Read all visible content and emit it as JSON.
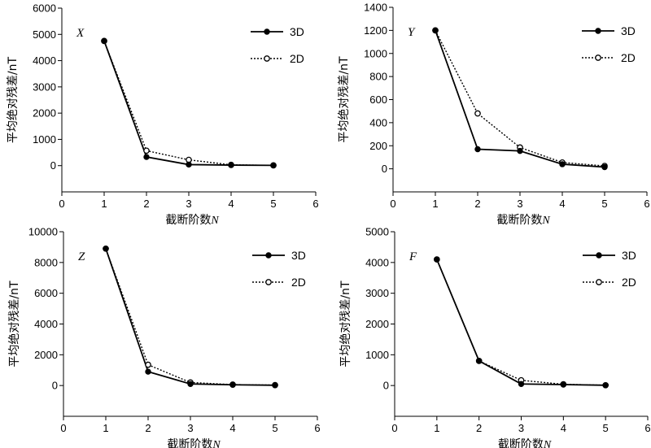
{
  "chart_data": [
    {
      "type": "line",
      "panel_label": "X",
      "xlabel": "截断阶数",
      "xlabel_var": "N",
      "ylabel": "平均绝对残差/nT",
      "xlim": [
        0,
        6
      ],
      "ylim": [
        -1000,
        6000
      ],
      "xticks": [
        0,
        1,
        2,
        3,
        4,
        5,
        6
      ],
      "yticks": [
        0,
        1000,
        2000,
        3000,
        4000,
        5000,
        6000
      ],
      "legend_position": "top-right",
      "series": [
        {
          "name": "3D",
          "style": "solid-filled",
          "x": [
            1,
            2,
            3,
            4,
            5
          ],
          "y": [
            4750,
            330,
            40,
            20,
            10
          ]
        },
        {
          "name": "2D",
          "style": "dotted-open",
          "x": [
            1,
            2,
            3,
            4,
            5
          ],
          "y": [
            4750,
            570,
            220,
            30,
            10
          ]
        }
      ]
    },
    {
      "type": "line",
      "panel_label": "Y",
      "xlabel": "截断阶数",
      "xlabel_var": "N",
      "ylabel": "平均绝对残差/nT",
      "xlim": [
        0,
        6
      ],
      "ylim": [
        -200,
        1400
      ],
      "xticks": [
        0,
        1,
        2,
        3,
        4,
        5,
        6
      ],
      "yticks": [
        0,
        200,
        400,
        600,
        800,
        1000,
        1200,
        1400
      ],
      "legend_position": "top-right",
      "series": [
        {
          "name": "3D",
          "style": "solid-filled",
          "x": [
            1,
            2,
            3,
            4,
            5
          ],
          "y": [
            1200,
            170,
            155,
            40,
            15
          ]
        },
        {
          "name": "2D",
          "style": "dotted-open",
          "x": [
            1,
            2,
            3,
            4,
            5
          ],
          "y": [
            1200,
            480,
            185,
            55,
            25
          ]
        }
      ]
    },
    {
      "type": "line",
      "panel_label": "Z",
      "xlabel": "截断阶数",
      "xlabel_var": "N",
      "ylabel": "平均绝对残差/nT",
      "xlim": [
        0,
        6
      ],
      "ylim": [
        -2000,
        10000
      ],
      "xticks": [
        0,
        1,
        2,
        3,
        4,
        5,
        6
      ],
      "yticks": [
        0,
        2000,
        4000,
        6000,
        8000,
        10000
      ],
      "legend_position": "top-right",
      "series": [
        {
          "name": "3D",
          "style": "solid-filled",
          "x": [
            1,
            2,
            3,
            4,
            5
          ],
          "y": [
            8900,
            900,
            100,
            50,
            20
          ]
        },
        {
          "name": "2D",
          "style": "dotted-open",
          "x": [
            1,
            2,
            3,
            4,
            5
          ],
          "y": [
            8900,
            1350,
            200,
            60,
            30
          ]
        }
      ]
    },
    {
      "type": "line",
      "panel_label": "F",
      "xlabel": "截断阶数",
      "xlabel_var": "N",
      "ylabel": "平均绝对残差/nT",
      "xlim": [
        0,
        6
      ],
      "ylim": [
        -1000,
        5000
      ],
      "xticks": [
        0,
        1,
        2,
        3,
        4,
        5,
        6
      ],
      "yticks": [
        0,
        1000,
        2000,
        3000,
        4000,
        5000
      ],
      "legend_position": "top-right",
      "series": [
        {
          "name": "3D",
          "style": "solid-filled",
          "x": [
            1,
            2,
            3,
            4,
            5
          ],
          "y": [
            4100,
            800,
            50,
            30,
            10
          ]
        },
        {
          "name": "2D",
          "style": "dotted-open",
          "x": [
            1,
            2,
            3,
            4,
            5
          ],
          "y": [
            4100,
            800,
            170,
            40,
            10
          ]
        }
      ]
    }
  ]
}
